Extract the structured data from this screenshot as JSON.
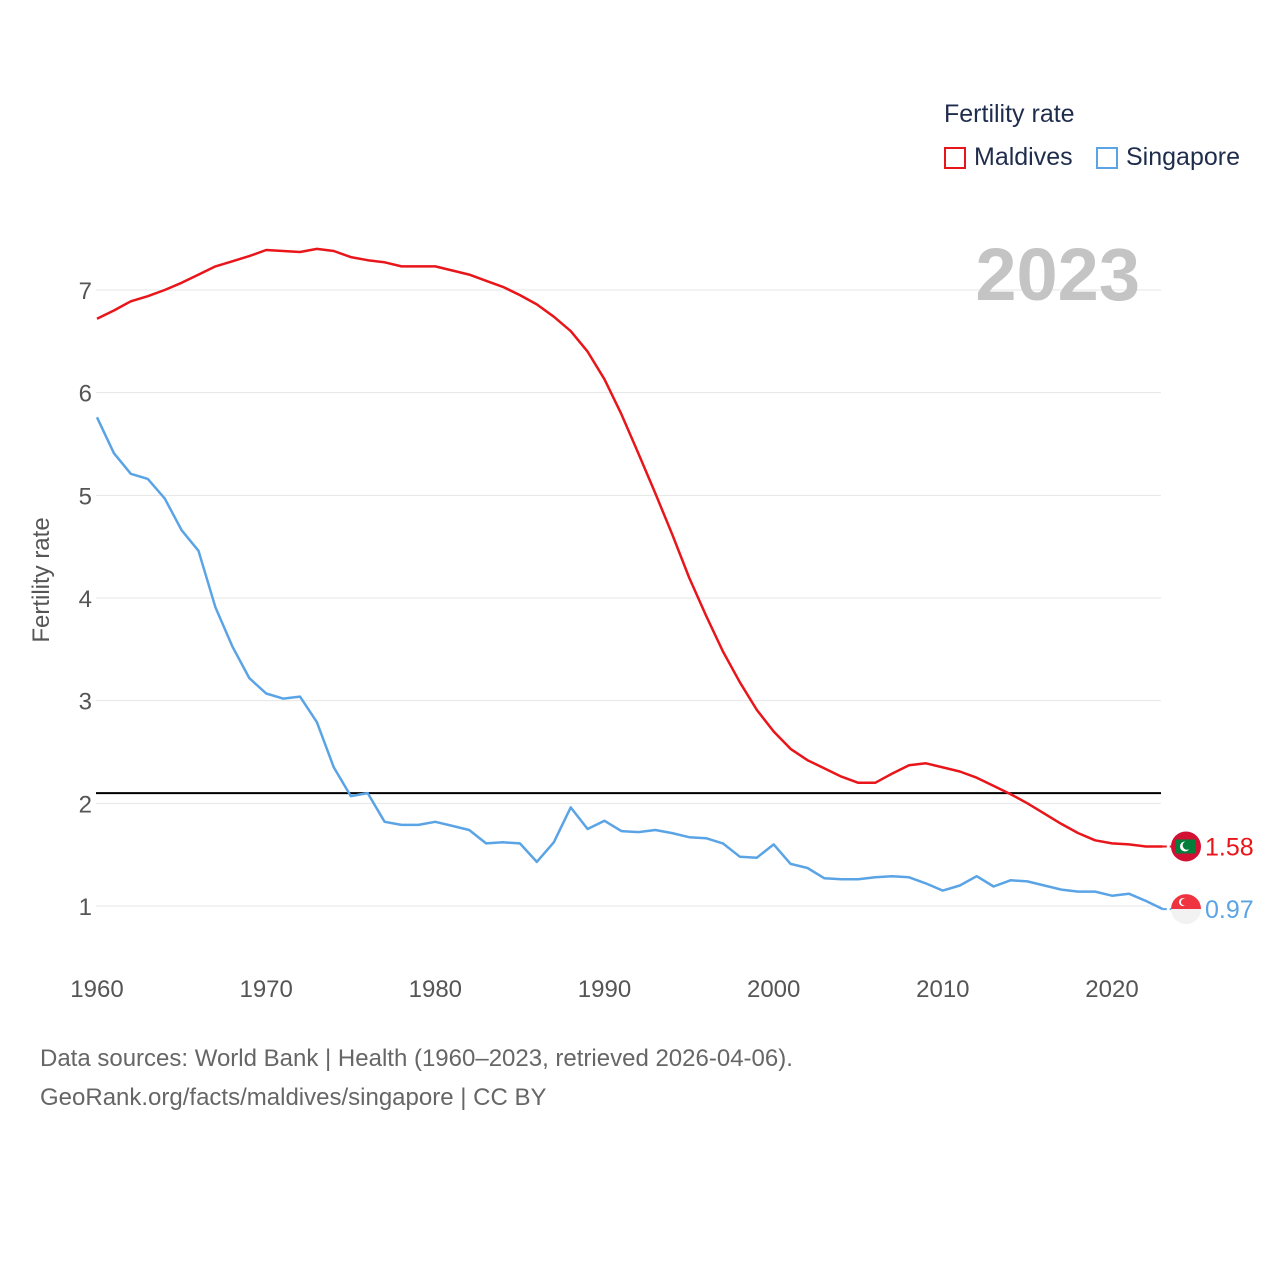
{
  "legend": {
    "title": "Fertility rate",
    "items": [
      {
        "name": "Maldives",
        "color": "#e8161b"
      },
      {
        "name": "Singapore",
        "color": "#5aa4e6"
      }
    ]
  },
  "year_label": "2023",
  "footer": {
    "line1": "Data sources: World Bank | Health (1960–2023, retrieved 2026-04-06).",
    "line2": "GeoRank.org/facts/maldives/singapore | CC BY"
  },
  "chart_data": {
    "type": "line",
    "title": "Fertility rate",
    "xlabel": "",
    "ylabel": "Fertility rate",
    "xlim": [
      1960,
      2023
    ],
    "ylim": [
      0.5,
      7.7
    ],
    "x_ticks": [
      1960,
      1970,
      1980,
      1990,
      2000,
      2010,
      2020
    ],
    "y_ticks": [
      1,
      2,
      3,
      4,
      5,
      6,
      7
    ],
    "grid": true,
    "reference_line": {
      "y": 2.1,
      "color": "#000000"
    },
    "x": [
      1960,
      1961,
      1962,
      1963,
      1964,
      1965,
      1966,
      1967,
      1968,
      1969,
      1970,
      1971,
      1972,
      1973,
      1974,
      1975,
      1976,
      1977,
      1978,
      1979,
      1980,
      1981,
      1982,
      1983,
      1984,
      1985,
      1986,
      1987,
      1988,
      1989,
      1990,
      1991,
      1992,
      1993,
      1994,
      1995,
      1996,
      1997,
      1998,
      1999,
      2000,
      2001,
      2002,
      2003,
      2004,
      2005,
      2006,
      2007,
      2008,
      2009,
      2010,
      2011,
      2012,
      2013,
      2014,
      2015,
      2016,
      2017,
      2018,
      2019,
      2020,
      2021,
      2022,
      2023
    ],
    "series": [
      {
        "name": "Maldives",
        "color": "#e8161b",
        "end_label": "1.58",
        "values": [
          6.72,
          6.8,
          6.89,
          6.94,
          7.0,
          7.07,
          7.15,
          7.23,
          7.28,
          7.33,
          7.39,
          7.38,
          7.37,
          7.4,
          7.38,
          7.32,
          7.29,
          7.27,
          7.23,
          7.23,
          7.23,
          7.19,
          7.15,
          7.09,
          7.03,
          6.95,
          6.86,
          6.74,
          6.6,
          6.4,
          6.13,
          5.79,
          5.41,
          5.02,
          4.62,
          4.2,
          3.83,
          3.48,
          3.18,
          2.91,
          2.7,
          2.53,
          2.42,
          2.34,
          2.26,
          2.2,
          2.2,
          2.29,
          2.37,
          2.39,
          2.35,
          2.31,
          2.25,
          2.17,
          2.09,
          2.0,
          1.9,
          1.8,
          1.71,
          1.64,
          1.61,
          1.6,
          1.58,
          1.58
        ]
      },
      {
        "name": "Singapore",
        "color": "#5aa4e6",
        "end_label": "0.97",
        "values": [
          5.76,
          5.41,
          5.21,
          5.16,
          4.97,
          4.66,
          4.46,
          3.91,
          3.53,
          3.22,
          3.07,
          3.02,
          3.04,
          2.79,
          2.35,
          2.07,
          2.1,
          1.82,
          1.79,
          1.79,
          1.82,
          1.78,
          1.74,
          1.61,
          1.62,
          1.61,
          1.43,
          1.62,
          1.96,
          1.75,
          1.83,
          1.73,
          1.72,
          1.74,
          1.71,
          1.67,
          1.66,
          1.61,
          1.48,
          1.47,
          1.6,
          1.41,
          1.37,
          1.27,
          1.26,
          1.26,
          1.28,
          1.29,
          1.28,
          1.22,
          1.15,
          1.2,
          1.29,
          1.19,
          1.25,
          1.24,
          1.2,
          1.16,
          1.14,
          1.14,
          1.1,
          1.12,
          1.05,
          0.97
        ]
      }
    ]
  }
}
